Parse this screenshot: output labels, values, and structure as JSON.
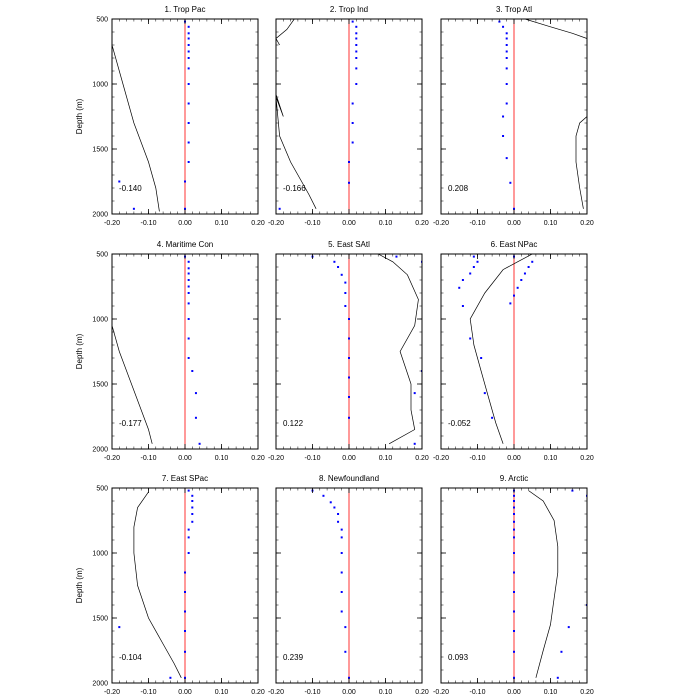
{
  "figure": {
    "shared_ylabel": "Depth (m)",
    "colors": {
      "frame": "#000000",
      "zero_line": "#ff3333",
      "dots": "#0000ff",
      "curve": "#000000"
    }
  },
  "chart_data": [
    {
      "type": "line",
      "title": "1. Trop Pac",
      "annotation": "-0.140",
      "xlim": [
        -0.2,
        0.2
      ],
      "ylim": [
        2000,
        500
      ],
      "xticks": [
        "-0.20",
        "-0.10",
        "0.00",
        "0.10",
        "0.20"
      ],
      "yticks": [
        500,
        1000,
        1500,
        2000
      ],
      "ylabel": "Depth (m)",
      "curve": {
        "x": [
          -0.2,
          -0.18,
          -0.16,
          -0.14,
          -0.12,
          -0.1,
          -0.08,
          -0.07
        ],
        "depth": [
          700,
          900,
          1100,
          1300,
          1450,
          1600,
          1800,
          1980
        ]
      },
      "dots": {
        "x": [
          0.0,
          0.01,
          0.01,
          0.01,
          0.01,
          0.01,
          0.01,
          0.01,
          0.01,
          0.01,
          0.01,
          0.01,
          0.01,
          0.0,
          0.0,
          -0.14,
          -0.18
        ],
        "depth": [
          520,
          560,
          610,
          650,
          700,
          750,
          800,
          880,
          1000,
          1150,
          1300,
          1450,
          1600,
          1750,
          1960,
          1960,
          1750
        ]
      }
    },
    {
      "type": "line",
      "title": "2. Trop Ind",
      "annotation": "-0.166",
      "xlim": [
        -0.2,
        0.2
      ],
      "ylim": [
        2000,
        500
      ],
      "xticks": [
        "-0.20",
        "-0.10",
        "0.00",
        "0.10",
        "0.20"
      ],
      "yticks": [
        500,
        1000,
        1500,
        2000
      ],
      "ylabel": "",
      "curve": {
        "x": [
          -0.2,
          -0.18,
          -0.2,
          -0.19,
          -0.16,
          -0.13,
          -0.11,
          -0.09
        ],
        "depth": [
          1080,
          1250,
          1100,
          1400,
          1600,
          1750,
          1850,
          1960
        ]
      },
      "curve2": {
        "x": [
          -0.19,
          -0.2,
          -0.17,
          -0.15
        ],
        "depth": [
          700,
          650,
          580,
          500
        ]
      },
      "dots": {
        "x": [
          0.01,
          0.02,
          0.02,
          0.02,
          0.02,
          0.02,
          0.02,
          0.02,
          0.02,
          0.01,
          0.01,
          0.01,
          0.0,
          0.0,
          -0.19
        ],
        "depth": [
          520,
          560,
          610,
          650,
          700,
          750,
          800,
          880,
          1000,
          1150,
          1300,
          1450,
          1600,
          1760,
          1960
        ]
      }
    },
    {
      "type": "line",
      "title": "3. Trop Atl",
      "annotation": "0.208",
      "xlim": [
        -0.2,
        0.2
      ],
      "ylim": [
        2000,
        500
      ],
      "xticks": [
        "-0.20",
        "-0.10",
        "0.00",
        "0.10",
        "0.20"
      ],
      "yticks": [
        500,
        1000,
        1500,
        2000
      ],
      "ylabel": "",
      "curve": {
        "x": [
          0.03,
          0.1,
          0.16,
          0.2
        ],
        "depth": [
          500,
          560,
          610,
          650
        ]
      },
      "curve2": {
        "x": [
          0.2,
          0.18,
          0.17,
          0.17,
          0.18,
          0.19
        ],
        "depth": [
          1250,
          1300,
          1400,
          1600,
          1800,
          1960
        ]
      },
      "dots": {
        "x": [
          -0.04,
          -0.03,
          -0.02,
          -0.02,
          -0.02,
          -0.02,
          -0.02,
          -0.02,
          -0.02,
          -0.02,
          -0.03,
          -0.03,
          -0.02,
          -0.01,
          0.0
        ],
        "depth": [
          520,
          560,
          610,
          650,
          700,
          750,
          800,
          880,
          1000,
          1150,
          1250,
          1400,
          1570,
          1760,
          1960
        ]
      }
    },
    {
      "type": "line",
      "title": "4. Maritime Con",
      "annotation": "-0.177",
      "xlim": [
        -0.2,
        0.2
      ],
      "ylim": [
        2000,
        500
      ],
      "xticks": [
        "-0.20",
        "-0.10",
        "0.00",
        "0.10",
        "0.20"
      ],
      "yticks": [
        500,
        1000,
        1500,
        2000
      ],
      "ylabel": "Depth (m)",
      "curve": {
        "x": [
          -0.2,
          -0.18,
          -0.16,
          -0.14,
          -0.12,
          -0.1,
          -0.09
        ],
        "depth": [
          1050,
          1250,
          1400,
          1550,
          1700,
          1850,
          1960
        ]
      },
      "dots": {
        "x": [
          0.0,
          0.01,
          0.01,
          0.01,
          0.01,
          0.01,
          0.01,
          0.01,
          0.01,
          0.01,
          0.01,
          0.02,
          0.03,
          0.03,
          0.04
        ],
        "depth": [
          520,
          560,
          610,
          650,
          700,
          750,
          800,
          880,
          1000,
          1150,
          1300,
          1400,
          1570,
          1760,
          1960
        ]
      }
    },
    {
      "type": "line",
      "title": "5. East SAtl",
      "annotation": "0.122",
      "xlim": [
        -0.2,
        0.2
      ],
      "ylim": [
        2000,
        500
      ],
      "xticks": [
        "-0.20",
        "-0.10",
        "0.00",
        "0.10",
        "0.20"
      ],
      "yticks": [
        500,
        1000,
        1500,
        2000
      ],
      "ylabel": "",
      "curve": {
        "x": [
          0.08,
          0.12,
          0.16,
          0.19,
          0.18,
          0.14,
          0.17,
          0.17,
          0.18,
          0.11
        ],
        "depth": [
          500,
          560,
          660,
          850,
          1050,
          1250,
          1500,
          1700,
          1850,
          1960
        ]
      },
      "dots": {
        "x": [
          0.13,
          0.2,
          -0.1,
          -0.04,
          -0.03,
          -0.02,
          -0.01,
          -0.01,
          -0.01,
          0.0,
          0.0,
          0.0,
          0.0,
          0.0,
          0.0,
          0.18,
          0.18,
          0.2
        ],
        "depth": [
          520,
          560,
          520,
          560,
          600,
          660,
          720,
          800,
          900,
          1000,
          1150,
          1300,
          1450,
          1600,
          1760,
          1960,
          1570,
          1400
        ]
      }
    },
    {
      "type": "line",
      "title": "6. East NPac",
      "annotation": "-0.052",
      "xlim": [
        -0.2,
        0.2
      ],
      "ylim": [
        2000,
        500
      ],
      "xticks": [
        "-0.20",
        "-0.10",
        "0.00",
        "0.10",
        "0.20"
      ],
      "yticks": [
        500,
        1000,
        1500,
        2000
      ],
      "ylabel": "",
      "curve": {
        "x": [
          0.05,
          0.01,
          -0.03,
          -0.08,
          -0.12,
          -0.11,
          -0.09,
          -0.07,
          -0.05,
          -0.03
        ],
        "depth": [
          500,
          560,
          620,
          800,
          1000,
          1200,
          1400,
          1600,
          1800,
          1960
        ]
      },
      "dots": {
        "x": [
          0.0,
          0.05,
          0.04,
          0.03,
          0.02,
          0.01,
          0.0,
          -0.01,
          -0.11,
          -0.1,
          -0.11,
          -0.12,
          -0.14,
          -0.15,
          -0.14,
          -0.12,
          -0.09,
          -0.08,
          -0.06
        ],
        "depth": [
          520,
          560,
          600,
          650,
          700,
          760,
          820,
          880,
          520,
          560,
          600,
          650,
          700,
          760,
          900,
          1150,
          1300,
          1570,
          1760
        ]
      }
    },
    {
      "type": "line",
      "title": "7. East SPac",
      "annotation": "-0.104",
      "xlim": [
        -0.2,
        0.2
      ],
      "ylim": [
        2000,
        500
      ],
      "xticks": [
        "-0.20",
        "-0.10",
        "0.00",
        "0.10",
        "0.20"
      ],
      "yticks": [
        500,
        1000,
        1500,
        2000
      ],
      "ylabel": "Depth (m)",
      "curve": {
        "x": [
          -0.1,
          -0.13,
          -0.14,
          -0.14,
          -0.13,
          -0.1,
          -0.06,
          -0.03,
          -0.01
        ],
        "depth": [
          530,
          650,
          800,
          1000,
          1250,
          1500,
          1700,
          1850,
          1960
        ]
      },
      "dots": {
        "x": [
          0.01,
          0.02,
          0.02,
          0.02,
          0.02,
          0.02,
          0.01,
          0.01,
          0.01,
          0.0,
          0.0,
          0.0,
          0.0,
          0.0,
          0.0,
          -0.18,
          -0.04
        ],
        "depth": [
          520,
          560,
          600,
          650,
          700,
          760,
          820,
          880,
          1000,
          1150,
          1300,
          1450,
          1600,
          1760,
          1960,
          1570,
          1960
        ]
      }
    },
    {
      "type": "line",
      "title": "8. Newfoundland",
      "annotation": "0.239",
      "xlim": [
        -0.2,
        0.2
      ],
      "ylim": [
        2000,
        500
      ],
      "xticks": [
        "-0.20",
        "-0.10",
        "0.00",
        "0.10",
        "0.20"
      ],
      "yticks": [
        500,
        1000,
        1500,
        2000
      ],
      "ylabel": "",
      "curve": {
        "x": [],
        "depth": []
      },
      "dots": {
        "x": [
          -0.1,
          -0.07,
          -0.05,
          -0.04,
          -0.03,
          -0.03,
          -0.02,
          -0.02,
          -0.02,
          -0.02,
          -0.02,
          -0.02,
          -0.01,
          -0.01,
          0.0
        ],
        "depth": [
          520,
          560,
          610,
          650,
          700,
          760,
          820,
          880,
          1000,
          1150,
          1300,
          1450,
          1570,
          1760,
          1960
        ]
      }
    },
    {
      "type": "line",
      "title": "9. Arctic",
      "annotation": "0.093",
      "xlim": [
        -0.2,
        0.2
      ],
      "ylim": [
        2000,
        500
      ],
      "xticks": [
        "-0.20",
        "-0.10",
        "0.00",
        "0.10",
        "0.20"
      ],
      "yticks": [
        500,
        1000,
        1500,
        2000
      ],
      "ylabel": "",
      "curve": {
        "x": [
          0.04,
          0.08,
          0.11,
          0.12,
          0.12,
          0.11,
          0.1,
          0.08,
          0.06
        ],
        "depth": [
          520,
          600,
          750,
          950,
          1150,
          1350,
          1550,
          1750,
          1960
        ]
      },
      "dots": {
        "x": [
          0.0,
          0.0,
          0.0,
          0.0,
          0.0,
          0.0,
          0.0,
          0.0,
          0.0,
          0.0,
          0.0,
          0.0,
          0.0,
          0.0,
          0.0,
          0.16,
          0.2,
          0.2,
          0.15,
          0.13,
          0.12
        ],
        "depth": [
          520,
          560,
          600,
          650,
          700,
          760,
          820,
          880,
          1000,
          1150,
          1300,
          1450,
          1600,
          1760,
          1960,
          520,
          560,
          1400,
          1570,
          1760,
          1960
        ]
      }
    }
  ]
}
